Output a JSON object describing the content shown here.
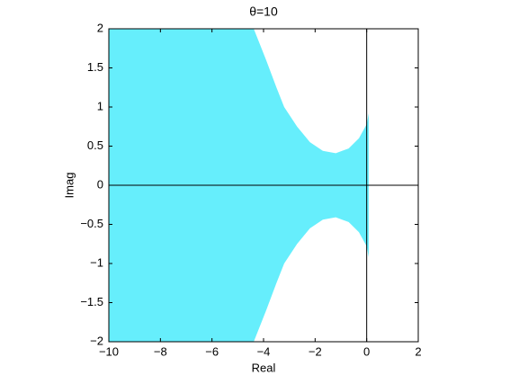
{
  "chart_data": {
    "type": "area",
    "title": "θ=10",
    "xlabel": "Real",
    "ylabel": "Imag",
    "series": [
      {
        "color": "#66eefc",
        "x": [
          -10,
          -4.38,
          -3.9,
          -3.5,
          -3.2,
          -2.7,
          -2.2,
          -1.7,
          -1.2,
          -0.7,
          -0.3,
          0,
          0.08,
          0.08,
          0,
          -0.3,
          -0.7,
          -1.2,
          -1.7,
          -2.2,
          -2.7,
          -3.2,
          -3.5,
          -3.9,
          -4.38,
          -10
        ],
        "values": [
          2,
          2,
          1.6,
          1.25,
          1.0,
          0.75,
          0.55,
          0.44,
          0.41,
          0.47,
          0.6,
          0.78,
          0.92,
          -0.92,
          -0.78,
          -0.6,
          -0.47,
          -0.41,
          -0.44,
          -0.55,
          -0.75,
          -1.0,
          -1.25,
          -1.6,
          -2,
          -2
        ]
      }
    ],
    "xlim": [
      -10,
      2
    ],
    "xticks": [
      {
        "value": -10,
        "label": "−10"
      },
      {
        "value": -8,
        "label": "−8"
      },
      {
        "value": -6,
        "label": "−6"
      },
      {
        "value": -4,
        "label": "−4"
      },
      {
        "value": -2,
        "label": "−2"
      },
      0,
      2
    ],
    "ylim": [
      -2,
      2
    ],
    "yticks": [
      {
        "value": -2,
        "label": "−2"
      },
      {
        "value": -1.5,
        "label": "−1.5"
      },
      {
        "value": -1,
        "label": "−1"
      },
      {
        "value": -0.5,
        "label": "−0.5"
      },
      0,
      0.5,
      1,
      1.5,
      2
    ],
    "grid": false,
    "axis_lines": true
  }
}
